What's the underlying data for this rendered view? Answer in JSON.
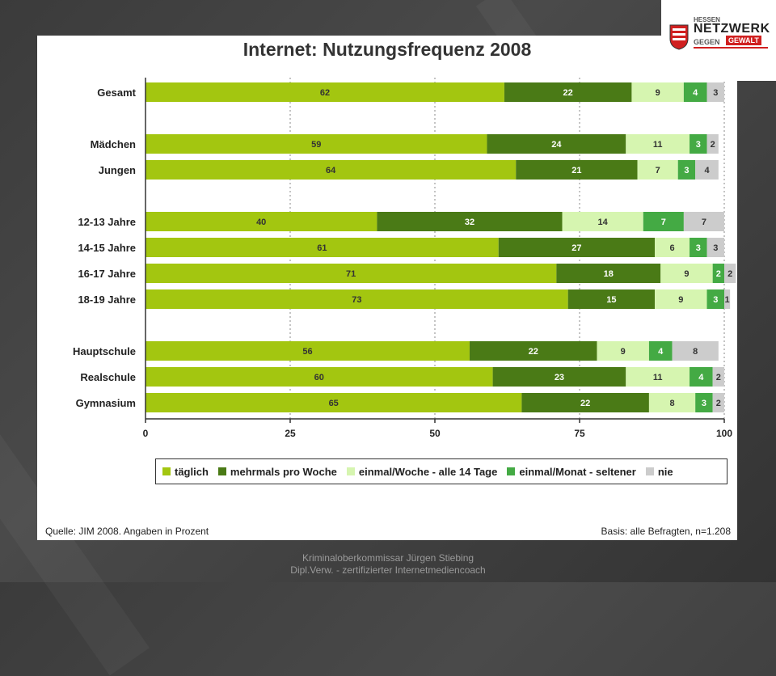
{
  "logo": {
    "small": "HESSEN",
    "main": "NETZWERK",
    "gegen": "GEGEN",
    "gewalt": "GEWALT"
  },
  "source": "Quelle: JIM 2008. Angaben in Prozent",
  "basis": "Basis: alle Befragten, n=1.208",
  "footer": {
    "line1": "Kriminaloberkommissar Jürgen Stiebing",
    "line2": "Dipl.Verw. - zertifizierter Internetmediencoach"
  },
  "colors": {
    "taeglich": "#a3c610",
    "mehrmals": "#4a7a16",
    "einmal_woche": "#d6f5b0",
    "einmal_monat": "#44aa44",
    "nie": "#cccccc"
  },
  "chart_data": {
    "type": "bar",
    "orientation": "horizontal",
    "stacked": true,
    "title": "Internet: Nutzungsfrequenz 2008",
    "categories": [
      "Gesamt",
      "Mädchen",
      "Jungen",
      "12-13 Jahre",
      "14-15 Jahre",
      "16-17 Jahre",
      "18-19 Jahre",
      "Hauptschule",
      "Realschule",
      "Gymnasium"
    ],
    "groups": [
      [
        0
      ],
      [
        1,
        2
      ],
      [
        3,
        4,
        5,
        6
      ],
      [
        7,
        8,
        9
      ]
    ],
    "series": [
      {
        "name": "täglich",
        "values": [
          62,
          59,
          64,
          40,
          61,
          71,
          73,
          56,
          60,
          65
        ]
      },
      {
        "name": "mehrmals pro Woche",
        "values": [
          22,
          24,
          21,
          32,
          27,
          18,
          15,
          22,
          23,
          22
        ]
      },
      {
        "name": "einmal/Woche - alle 14 Tage",
        "values": [
          9,
          11,
          7,
          14,
          6,
          9,
          9,
          9,
          11,
          8
        ]
      },
      {
        "name": "einmal/Monat - seltener",
        "values": [
          4,
          3,
          3,
          7,
          3,
          2,
          3,
          4,
          4,
          3
        ]
      },
      {
        "name": "nie",
        "values": [
          3,
          2,
          4,
          7,
          3,
          2,
          1,
          8,
          2,
          2
        ]
      }
    ],
    "xticks": [
      0,
      25,
      50,
      75,
      100
    ],
    "xlim": [
      0,
      100
    ],
    "grid": true,
    "legend_position": "bottom"
  }
}
